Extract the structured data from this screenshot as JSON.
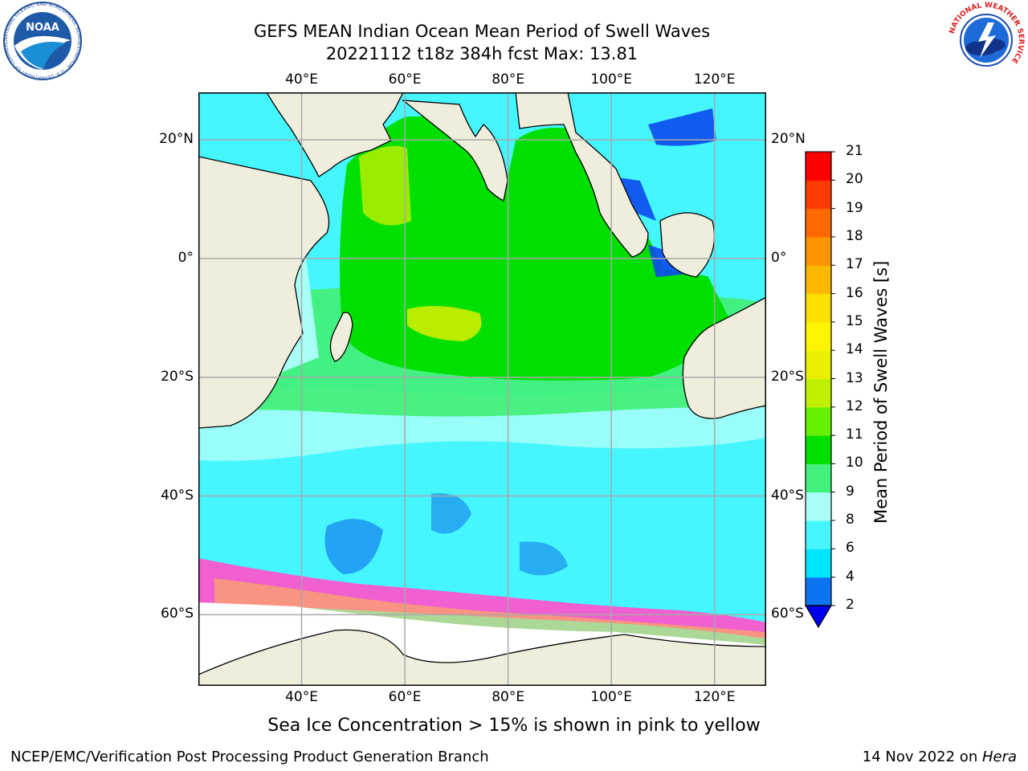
{
  "header": {
    "title_line1": "GEFS MEAN Indian Ocean Mean Period of Swell Waves",
    "title_line2": "20221112 t18z 384h fcst   Max: 13.81"
  },
  "logos": {
    "left": "noaa-logo-icon",
    "left_text": "NOAA",
    "left_ring_text": "NATIONAL OCEANIC AND ATMOSPHERIC ADMINISTRATION · U.S. DEPARTMENT OF COMMERCE",
    "right": "national-weather-service-logo-icon",
    "right_ring_text": "NATIONAL WEATHER SERVICE"
  },
  "map": {
    "lon_ticks": [
      "40°E",
      "60°E",
      "80°E",
      "100°E",
      "120°E"
    ],
    "lat_ticks": [
      "20°N",
      "0°",
      "20°S",
      "40°S",
      "60°S"
    ],
    "lon_range": [
      20,
      130
    ],
    "lat_range": [
      -72,
      28
    ],
    "grid": true
  },
  "colorbar": {
    "title": "Mean Period of Swell Waves [s]",
    "ticks": [
      "2",
      "4",
      "6",
      "8",
      "9",
      "10",
      "11",
      "12",
      "13",
      "14",
      "15",
      "16",
      "17",
      "18",
      "19",
      "20",
      "21"
    ],
    "colors": [
      "#0c74f0",
      "#00e5ff",
      "#45f6ff",
      "#a8fff8",
      "#43f07b",
      "#00e000",
      "#64f000",
      "#c0f000",
      "#e8f000",
      "#fff500",
      "#ffe000",
      "#ffb800",
      "#ff9400",
      "#ff6a00",
      "#ff3a00",
      "#ff0000"
    ],
    "under_color": "#0000ee"
  },
  "caption": "Sea Ice Concentration > 15% is shown in pink to yellow",
  "footer": {
    "left": "NCEP/EMC/Verification Post Processing Product Generation Branch",
    "date": "14 Nov 2022 on ",
    "machine": "Hera"
  },
  "colors": {
    "land": "#efeedd",
    "ice_pink": "#f060d0",
    "ice_yellow": "#ffc040"
  }
}
